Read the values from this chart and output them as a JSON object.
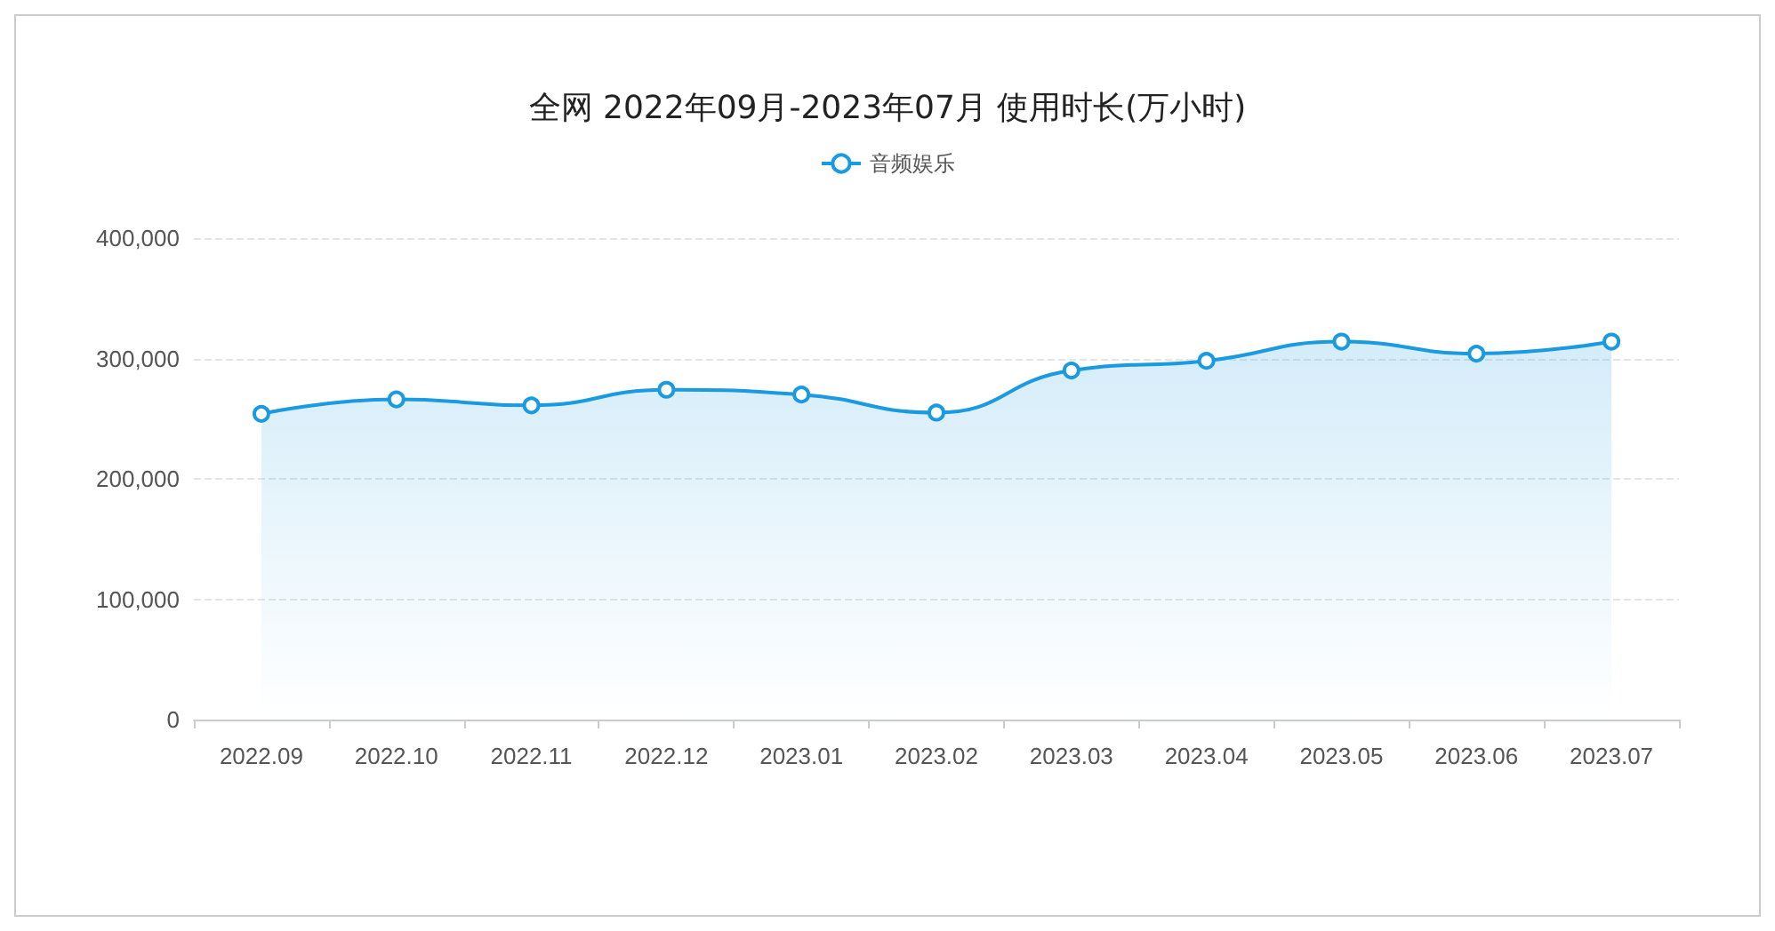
{
  "chart_data": {
    "type": "area",
    "title": "全网 2022年09月-2023年07月 使用时长(万小时)",
    "categories": [
      "2022.09",
      "2022.10",
      "2022.11",
      "2022.12",
      "2023.01",
      "2023.02",
      "2023.03",
      "2023.04",
      "2023.05",
      "2023.06",
      "2023.07"
    ],
    "series": [
      {
        "name": "音频娱乐",
        "color": "#1a9ae0",
        "values": [
          254000,
          266000,
          261000,
          274000,
          270000,
          255000,
          290000,
          298000,
          314000,
          304000,
          314000
        ]
      }
    ],
    "ylim": [
      0,
      400000
    ],
    "yticks": [
      0,
      {
        "value": 100000,
        "label": "100,000"
      },
      {
        "value": 200000,
        "label": "200,000"
      },
      {
        "value": 300000,
        "label": "300,000"
      },
      {
        "value": 400000,
        "label": "400,000"
      }
    ],
    "grid": "y",
    "legend": "top",
    "marker": "circle",
    "line_style": "solid"
  }
}
